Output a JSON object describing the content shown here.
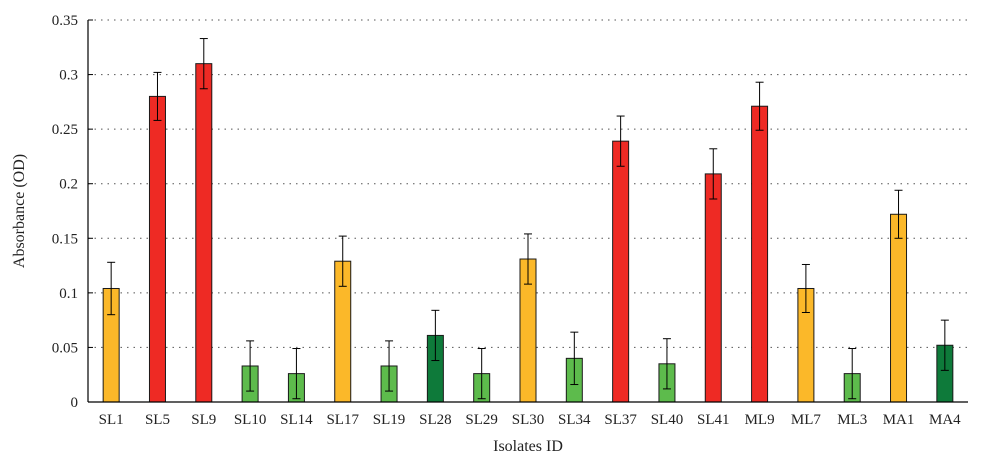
{
  "chart_data": {
    "type": "bar",
    "title": "",
    "xlabel": "Isolates ID",
    "ylabel": "Absorbance (OD)",
    "ylim": [
      0,
      0.35
    ],
    "yticks": [
      0,
      0.05,
      0.1,
      0.15,
      0.2,
      0.25,
      0.3,
      0.35
    ],
    "ytick_labels": [
      "0",
      "0.05",
      "0.1",
      "0.15",
      "0.2",
      "0.25",
      "0.3",
      "0.35"
    ],
    "grid": "horizontal dotted",
    "categories": [
      "SL1",
      "SL5",
      "SL9",
      "SL10",
      "SL14",
      "SL17",
      "SL19",
      "SL28",
      "SL29",
      "SL30",
      "SL34",
      "SL37",
      "SL40",
      "SL41",
      "ML9",
      "ML7",
      "ML3",
      "MA1",
      "MA4"
    ],
    "values": [
      0.104,
      0.28,
      0.31,
      0.033,
      0.026,
      0.129,
      0.033,
      0.061,
      0.026,
      0.131,
      0.04,
      0.239,
      0.035,
      0.209,
      0.271,
      0.104,
      0.026,
      0.172,
      0.052
    ],
    "errors": [
      0.024,
      0.022,
      0.023,
      0.023,
      0.023,
      0.023,
      0.023,
      0.023,
      0.023,
      0.023,
      0.024,
      0.023,
      0.023,
      0.023,
      0.022,
      0.022,
      0.023,
      0.022,
      0.023
    ],
    "bar_colors": [
      "#FBB829",
      "#EE2A24",
      "#EE2A24",
      "#5DBB4C",
      "#5DBB4C",
      "#FBB829",
      "#5DBB4C",
      "#0E7A3A",
      "#5DBB4C",
      "#FBB829",
      "#5DBB4C",
      "#EE2A24",
      "#5DBB4C",
      "#EE2A24",
      "#EE2A24",
      "#FBB829",
      "#5DBB4C",
      "#FBB829",
      "#0E7A3A"
    ]
  }
}
